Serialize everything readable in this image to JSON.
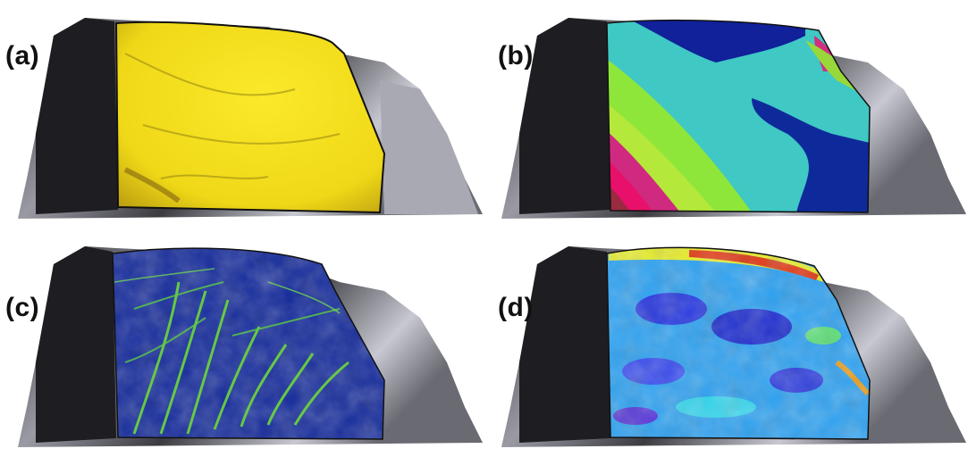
{
  "panels": [
    {
      "label": "(a)",
      "overlay": "yellow-shaded"
    },
    {
      "label": "(b)",
      "overlay": "rainbow-bands"
    },
    {
      "label": "(c)",
      "overlay": "blue-green-channels"
    },
    {
      "label": "(d)",
      "overlay": "blue-turbo-texture"
    }
  ],
  "colors": {
    "terrain_dark": "#1a1a1a",
    "terrain_light": "#d9d9e3",
    "yellow": "#f1df18",
    "deep_blue": "#0e2a9a",
    "cyan": "#38c8c8",
    "green": "#6bdc2a",
    "magenta": "#d0106c",
    "bright_green": "#78e83a"
  }
}
